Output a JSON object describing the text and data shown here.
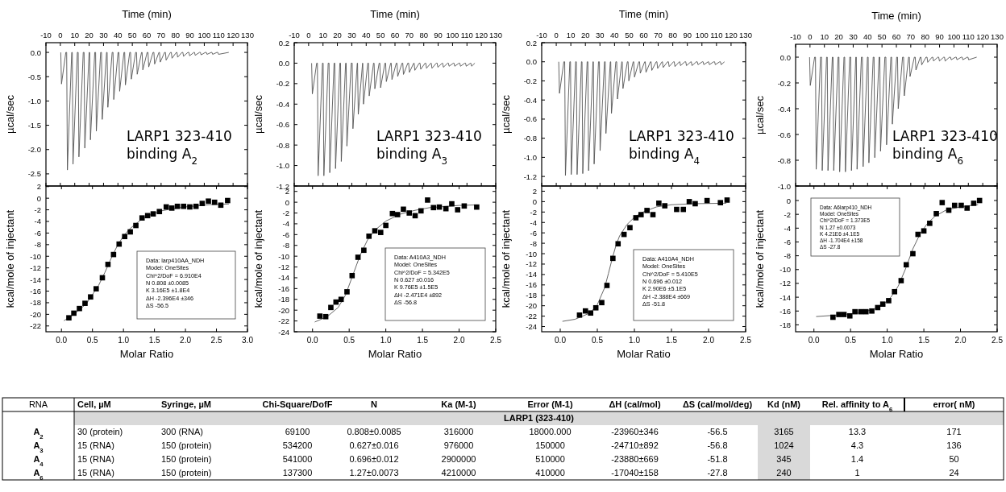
{
  "chart_data": [
    {
      "type": "line",
      "xlabel": "Time (min)",
      "xlim": [
        -10,
        130
      ],
      "xticks": [
        -10,
        0,
        10,
        20,
        30,
        40,
        50,
        60,
        70,
        80,
        90,
        100,
        110,
        120,
        130
      ],
      "ylabel": "µcal/sec",
      "ylim": [
        -2.75,
        0.2
      ],
      "yticks": [
        {
          "value": 0,
          "label": "0.0"
        },
        {
          "value": -0.5,
          "label": "-0.5"
        },
        {
          "value": -1,
          "label": "-1.0"
        },
        {
          "value": -1.5,
          "label": "-1.5"
        },
        {
          "value": -2,
          "label": "-2.0"
        },
        {
          "value": -2.5,
          "label": "-2.5"
        }
      ],
      "annotations": [
        "LARP1 323-410 binding A$_{2}$"
      ],
      "series": [
        {
          "type": "line",
          "color": "#555555",
          "x": [
            0.3,
            0.8,
            3.8,
            4.4,
            4.9,
            7.9,
            8.3,
            8.8,
            11.8,
            12.4,
            12.9,
            15.9,
            16.5,
            17,
            20,
            20.4,
            20.9,
            23.9,
            24.5,
            25,
            28,
            28.6,
            29.1,
            32.1,
            32.5,
            33,
            36,
            36.6,
            37.1,
            40.1,
            40.7,
            41.2,
            44.2,
            44.7,
            45.2,
            48.2,
            48.8,
            49.3,
            52.3,
            52.9,
            53.4,
            56.4,
            56.8,
            57.3,
            60.3,
            60.9,
            61.4,
            64.4,
            65,
            65.5,
            68.5,
            68.9,
            69.4,
            72.4,
            73,
            73.5,
            76.5,
            77.1,
            77.6,
            80.6,
            81,
            81.5,
            84.5,
            85.1,
            85.6,
            88.6,
            89.3,
            89.8,
            92.8,
            93.2,
            93.7,
            96.7,
            97.3,
            97.8,
            100.8,
            101.4,
            101.9,
            104.9,
            105.3,
            105.8,
            108.8,
            109.4,
            109.9,
            117
          ],
          "values": [
            0,
            -0.65,
            0,
            0,
            -2.42,
            0,
            0,
            -2.3,
            0,
            0,
            -2.15,
            0,
            0,
            -1.97,
            0,
            0,
            -1.8,
            0,
            0,
            -1.62,
            0,
            0,
            -1.38,
            0,
            0,
            -1.13,
            0,
            0,
            -0.97,
            0,
            0,
            -0.8,
            0,
            0,
            -0.67,
            0,
            0,
            -0.55,
            0,
            0,
            -0.45,
            0,
            0,
            -0.36,
            0,
            0,
            -0.3,
            0,
            0,
            -0.24,
            0,
            0,
            -0.2,
            0,
            0,
            -0.16,
            0,
            0,
            -0.12,
            0,
            0,
            -0.1,
            0,
            0,
            -0.08,
            0,
            0,
            -0.07,
            0,
            0,
            -0.06,
            0,
            0,
            -0.05,
            0,
            0,
            -0.04,
            0,
            0,
            -0.04,
            0,
            0,
            -0.04,
            0
          ]
        }
      ]
    },
    {
      "type": "scatter",
      "xlabel": "Molar Ratio",
      "xlim": [
        -0.25,
        3
      ],
      "xticks": [
        {
          "value": 0,
          "label": "0.0"
        },
        {
          "value": 0.5,
          "label": "0.5"
        },
        {
          "value": 1,
          "label": "1.0"
        },
        {
          "value": 1.5,
          "label": "1.5"
        },
        {
          "value": 2,
          "label": "2.0"
        },
        {
          "value": 2.5,
          "label": "2.5"
        },
        {
          "value": 3,
          "label": "3.0"
        }
      ],
      "ylabel": "kcal/mole of injectant",
      "ylim": [
        -23,
        2.1
      ],
      "yticks": [
        2,
        0,
        -2,
        -4,
        -6,
        -8,
        -10,
        -12,
        -14,
        -16,
        -18,
        -20,
        -22
      ],
      "annotations": [
        "Data: larp410AA_NDH",
        "Model: OneSites",
        "Chi^2/DoF = 6.910E4",
        "N 0.808 ±0.0085",
        "K 3.16E5 ±1.8E4",
        "ΔH -2.396E4 ±346",
        "ΔS -56.5"
      ],
      "series": [
        {
          "type": "line",
          "color": "#555555",
          "x": [
            0.04,
            0.2,
            0.4,
            0.6,
            0.7,
            0.8,
            0.9,
            1,
            1.1,
            1.2,
            1.3,
            1.4,
            1.5,
            1.6,
            1.8,
            2,
            2.2,
            2.4,
            2.7
          ],
          "values": [
            -21.1,
            -20,
            -18.2,
            -15,
            -12.8,
            -10.4,
            -8.2,
            -6.5,
            -5.3,
            -4.4,
            -3.6,
            -3,
            -2.6,
            -2.2,
            -1.8,
            -1.5,
            -1.3,
            -1.1,
            -1
          ]
        },
        {
          "type": "scatter",
          "color": "#000000",
          "marker": "square",
          "x": [
            0.12,
            0.2,
            0.29,
            0.38,
            0.47,
            0.56,
            0.66,
            0.75,
            0.84,
            0.93,
            1.02,
            1.11,
            1.2,
            1.3,
            1.39,
            1.48,
            1.58,
            1.69,
            1.78,
            1.87,
            1.97,
            2.07,
            2.17,
            2.27,
            2.37,
            2.47,
            2.57,
            2.68
          ],
          "values": [
            -20.6,
            -19.8,
            -19,
            -18.1,
            -17,
            -15.6,
            -13.7,
            -11.4,
            -9.7,
            -7.9,
            -6.6,
            -5.8,
            -4.7,
            -3.4,
            -3,
            -2.7,
            -2.3,
            -1.5,
            -1.7,
            -1.4,
            -1.4,
            -1.5,
            -1.4,
            -0.9,
            -0.5,
            -0.7,
            -1.2,
            -0.4
          ]
        }
      ]
    },
    {
      "type": "line",
      "xlabel": "Time (min)",
      "xlim": [
        -10,
        130
      ],
      "xticks": [
        -10,
        0,
        10,
        20,
        30,
        40,
        50,
        60,
        70,
        80,
        90,
        100,
        110,
        120,
        130
      ],
      "ylabel": "µcal/sec",
      "ylim": [
        -1.2,
        0.2
      ],
      "yticks": [
        0.2,
        {
          "value": 0,
          "label": "0.0"
        },
        -0.2,
        -0.4,
        -0.6,
        -0.8,
        {
          "value": -1,
          "label": "-1.0"
        },
        -1.2
      ],
      "annotations": [
        "LARP1 323-410 binding A$_{3}$"
      ],
      "series": [
        {
          "type": "line",
          "color": "#555555",
          "x": [
            2.1,
            2.6,
            5.6,
            6.1,
            6.6,
            9.6,
            10.1,
            10.6,
            13.6,
            14.2,
            14.7,
            17.7,
            18.2,
            18.7,
            21.7,
            22.2,
            22.7,
            25.7,
            26.1,
            26.6,
            29.6,
            30.3,
            30.8,
            33.8,
            34,
            34.5,
            37.5,
            37.6,
            38.1,
            41.1,
            41.6,
            42.1,
            45.1,
            45.5,
            46,
            49,
            49.5,
            50,
            53,
            53.5,
            54,
            57,
            57.4,
            57.9,
            60.9,
            61.4,
            61.9,
            64.9,
            65.4,
            65.9,
            68.9,
            69.5,
            70,
            73,
            73.3,
            73.8,
            76.8,
            77.4,
            77.9,
            80.9,
            81.4,
            81.9,
            84.9,
            85.2,
            85.7,
            88.7,
            89.3,
            89.8,
            92.8,
            93.1,
            93.6,
            96.6,
            97.1,
            97.6,
            100.6,
            101,
            101.5,
            104.5,
            105,
            105.5,
            108.5,
            109,
            109.5,
            112.5,
            112.7,
            113.2,
            115.5
          ],
          "values": [
            0,
            -0.3,
            0,
            0,
            -1.1,
            0,
            0,
            -1.1,
            0,
            0,
            -1.07,
            0,
            0,
            -1.03,
            0,
            0,
            -0.96,
            0,
            0,
            -0.81,
            0,
            0,
            -0.64,
            0,
            0,
            -0.5,
            0,
            0,
            -0.4,
            0,
            0,
            -0.32,
            0,
            0,
            -0.25,
            0,
            0,
            -0.24,
            0,
            0,
            -0.18,
            0,
            0,
            -0.16,
            0,
            0,
            -0.13,
            0,
            0,
            -0.11,
            0,
            0,
            -0.09,
            0,
            0,
            -0.07,
            0,
            0,
            -0.06,
            0,
            0,
            -0.05,
            0,
            0,
            -0.05,
            0,
            0,
            -0.04,
            0,
            0,
            -0.04,
            0,
            0,
            -0.03,
            0,
            0,
            -0.03,
            0,
            0,
            -0.03,
            0,
            0,
            -0.03,
            0,
            0,
            -0.03,
            0
          ]
        }
      ]
    },
    {
      "type": "scatter",
      "xlabel": "Molar Ratio",
      "xlim": [
        -0.25,
        2.5
      ],
      "xticks": [
        {
          "value": 0,
          "label": "0.0"
        },
        {
          "value": 0.5,
          "label": "0.5"
        },
        {
          "value": 1,
          "label": "1.0"
        },
        {
          "value": 1.5,
          "label": "1.5"
        },
        {
          "value": 2,
          "label": "2.0"
        },
        {
          "value": 2.5,
          "label": "2.5"
        }
      ],
      "ylabel": "kcal/mole of injectant",
      "ylim": [
        -24,
        3
      ],
      "yticks": [
        2,
        0,
        -2,
        -4,
        -6,
        -8,
        -10,
        -12,
        -14,
        -16,
        -18,
        -20,
        -22,
        -24
      ],
      "annotations": [
        "Data: A410A3_NDH",
        "Model: OneSites",
        "Chi^2/DoF = 5.342E5",
        "N 0.627 ±0.016",
        "K 9.76E5 ±1.5E5",
        "ΔH -2.471E4 ±892",
        "ΔS -56.8"
      ],
      "series": [
        {
          "type": "line",
          "color": "#555555",
          "x": [
            0.03,
            0.2,
            0.35,
            0.45,
            0.55,
            0.65,
            0.75,
            0.85,
            1,
            1.2,
            1.4,
            1.6,
            1.8,
            2,
            2.24
          ],
          "values": [
            -22.2,
            -21.2,
            -19.5,
            -17.2,
            -13.5,
            -9.8,
            -7,
            -5.2,
            -3.5,
            -2.2,
            -1.5,
            -1,
            -0.8,
            -0.6,
            -0.5
          ]
        },
        {
          "type": "scatter",
          "color": "#000000",
          "marker": "square",
          "x": [
            0.1,
            0.18,
            0.25,
            0.32,
            0.39,
            0.47,
            0.54,
            0.62,
            0.7,
            0.77,
            0.85,
            0.93,
            1,
            1.09,
            1.16,
            1.24,
            1.32,
            1.4,
            1.48,
            1.57,
            1.65,
            1.73,
            1.82,
            1.9,
            1.98,
            2.07,
            2.24
          ],
          "values": [
            -21.1,
            -21.2,
            -19.5,
            -18.5,
            -18,
            -16.6,
            -13.6,
            -10.2,
            -8.9,
            -6.3,
            -5.3,
            -5.6,
            -4.3,
            -2.1,
            -2.3,
            -1.3,
            -2,
            -2.5,
            -1.6,
            0.4,
            -1,
            -0.9,
            -1.2,
            -0.3,
            -1.4,
            -0.7,
            -0.9
          ]
        }
      ]
    },
    {
      "type": "line",
      "xlabel": "Time (min)",
      "xlim": [
        -10,
        130
      ],
      "xticks": [
        -10,
        0,
        10,
        20,
        30,
        40,
        50,
        60,
        70,
        80,
        90,
        100,
        110,
        120,
        130
      ],
      "ylabel": "µcal/sec",
      "ylim": [
        -1.3,
        0.2
      ],
      "yticks": [
        0.2,
        {
          "value": 0,
          "label": "0.0"
        },
        -0.2,
        -0.4,
        -0.6,
        -0.8,
        {
          "value": -1,
          "label": "-1.0"
        },
        -1.2
      ],
      "annotations": [
        "LARP1 323-410 binding A$_{4}$"
      ],
      "series": [
        {
          "type": "line",
          "color": "#555555",
          "x": [
            1.7,
            2.2,
            5.2,
            5.8,
            6.3,
            9.3,
            9.8,
            10.3,
            13.3,
            13.8,
            14.3,
            17.3,
            17.7,
            18.2,
            21.2,
            21.7,
            22.2,
            25.2,
            25.5,
            26,
            29,
            29.6,
            30.1,
            33.1,
            33.6,
            34.1,
            37.1,
            37.4,
            37.9,
            40.9,
            41.5,
            42,
            45,
            45.3,
            45.8,
            48.8,
            49.3,
            49.8,
            52.8,
            53.2,
            53.7,
            56.7,
            57.2,
            57.7,
            60.7,
            61.1,
            61.6,
            64.6,
            65.1,
            65.6,
            68.6,
            69.1,
            69.6,
            72.6,
            72.9,
            73.4,
            76.4,
            77,
            77.5,
            80.5,
            81,
            81.5,
            84.5,
            84.8,
            85.3,
            88.3,
            88.9,
            89.4,
            92.4,
            92.7,
            93.2,
            96.2,
            96.8,
            97.3,
            100.3,
            100.8,
            101.3,
            104.3,
            104.6,
            105.1,
            108.1,
            108.7,
            109.2,
            112.2,
            112.7,
            113.2,
            115.5
          ],
          "values": [
            0,
            -0.33,
            0,
            0,
            -1.19,
            0,
            0,
            -1.18,
            0,
            0,
            -1.18,
            0,
            0,
            -1.17,
            0,
            0,
            -1.14,
            0,
            0,
            -1.07,
            0,
            0,
            -0.93,
            0,
            0,
            -0.75,
            0,
            0,
            -0.54,
            0,
            0,
            -0.39,
            0,
            0,
            -0.28,
            0,
            0,
            -0.2,
            0,
            0,
            -0.16,
            0,
            0,
            -0.12,
            0,
            0,
            -0.11,
            0,
            0,
            -0.09,
            0,
            0,
            -0.07,
            0,
            0,
            -0.06,
            0,
            0,
            -0.05,
            0,
            0,
            -0.05,
            0,
            0,
            -0.04,
            0,
            0,
            -0.04,
            0,
            0,
            -0.04,
            0,
            0,
            -0.03,
            0,
            0,
            -0.03,
            0,
            0,
            -0.03,
            0,
            0,
            -0.03,
            0,
            0,
            -0.03,
            0
          ]
        }
      ]
    },
    {
      "type": "scatter",
      "xlabel": "Molar Ratio",
      "xlim": [
        -0.25,
        2.5
      ],
      "xticks": [
        {
          "value": 0,
          "label": "0.0"
        },
        {
          "value": 0.5,
          "label": "0.5"
        },
        {
          "value": 1,
          "label": "1.0"
        },
        {
          "value": 1.5,
          "label": "1.5"
        },
        {
          "value": 2,
          "label": "2.0"
        },
        {
          "value": 2.5,
          "label": "2.5"
        }
      ],
      "ylabel": "kcal/mole of injectant",
      "ylim": [
        -25,
        3
      ],
      "yticks": [
        2,
        0,
        -2,
        -4,
        -6,
        -8,
        -10,
        -12,
        -14,
        -16,
        -18,
        -20,
        -22,
        -24
      ],
      "annotations": [
        "Data: A410A4_NDH",
        "Model: OneSites",
        "Chi^2/DoF = 5.410E5",
        "N 0.696 ±0.012",
        "K 2.90E6 ±5.1E5",
        "ΔH -2.388E4 ±669",
        "ΔS -51.8"
      ],
      "series": [
        {
          "type": "line",
          "color": "#555555",
          "x": [
            0.03,
            0.2,
            0.4,
            0.5,
            0.6,
            0.65,
            0.7,
            0.75,
            0.8,
            0.9,
            1,
            1.1,
            1.3,
            1.5,
            1.8,
            2.24
          ],
          "values": [
            -23,
            -22.6,
            -21.4,
            -19.8,
            -16.5,
            -13.8,
            -11,
            -8.5,
            -6.6,
            -4.4,
            -3,
            -2.1,
            -1,
            -0.6,
            -0.4,
            -0.3
          ]
        },
        {
          "type": "scatter",
          "color": "#000000",
          "marker": "square",
          "x": [
            0.26,
            0.34,
            0.41,
            0.48,
            0.56,
            0.63,
            0.71,
            0.78,
            0.86,
            0.94,
            1.02,
            1.09,
            1.17,
            1.25,
            1.33,
            1.41,
            1.57,
            1.66,
            1.74,
            1.82,
            1.98,
            2.16,
            2.25
          ],
          "values": [
            -21.8,
            -21,
            -21.4,
            -20.4,
            -19.4,
            -16.1,
            -10.9,
            -8.1,
            -6.3,
            -5,
            -3.1,
            -2.5,
            -1.7,
            -2.5,
            -0.3,
            -0.8,
            -1.5,
            -1.5,
            0,
            -0.4,
            0.2,
            -0.2,
            0.3
          ]
        }
      ]
    },
    {
      "type": "line",
      "xlabel": "Time (min)",
      "xlim": [
        -10,
        130
      ],
      "xticks": [
        -10,
        0,
        10,
        20,
        30,
        40,
        50,
        60,
        70,
        80,
        90,
        100,
        110,
        120,
        130
      ],
      "ylabel": "µcal/sec",
      "ylim": [
        -1,
        0.1
      ],
      "yticks": [
        {
          "value": 0,
          "label": "0.0"
        },
        -0.2,
        -0.4,
        -0.6,
        -0.8,
        {
          "value": -1,
          "label": "-1.0"
        }
      ],
      "annotations": [
        "LARP1 323-410 binding A$_{6}$"
      ],
      "series": [
        {
          "type": "line",
          "color": "#555555",
          "x": [
            -0.3,
            0.2,
            3.2,
            3.8,
            4.3,
            7.3,
            8,
            8.5,
            11.5,
            12,
            12.5,
            15.5,
            16,
            16.5,
            19.5,
            20.1,
            20.6,
            23.6,
            24.1,
            24.6,
            27.6,
            28.3,
            28.8,
            31.8,
            32.2,
            32.7,
            35.7,
            36.4,
            36.9,
            39.9,
            40.4,
            40.9,
            43.9,
            44.5,
            45,
            48,
            48.5,
            49,
            52,
            52.7,
            53.2,
            56.2,
            56.7,
            57.2,
            60.2,
            60.8,
            61.3,
            64.3,
            65,
            65.5,
            68.5,
            69,
            69.5,
            72.5,
            73.1,
            73.6,
            76.6,
            77.1,
            77.6,
            80.6,
            81.3,
            81.8,
            84.8,
            85.3,
            85.8,
            88.8,
            89.4,
            89.9,
            92.9,
            93.4,
            93.9,
            96.9,
            97.6,
            98.1,
            101.1,
            101.6,
            102.1,
            105.1,
            105.7,
            106.2,
            109.2,
            109.7,
            110.2,
            115.8
          ],
          "values": [
            0,
            -0.22,
            0,
            0,
            -0.87,
            0,
            0,
            -0.88,
            0,
            0,
            -0.88,
            0,
            0,
            -0.88,
            0,
            0,
            -0.89,
            0,
            0,
            -0.89,
            0,
            0,
            -0.88,
            0,
            0,
            -0.87,
            0,
            0,
            -0.85,
            0,
            0,
            -0.82,
            0,
            0,
            -0.78,
            0,
            0,
            -0.73,
            0,
            0,
            -0.68,
            0,
            0,
            -0.52,
            0,
            0,
            -0.4,
            0,
            0,
            -0.3,
            0,
            0,
            -0.15,
            0,
            0,
            -0.1,
            0,
            0,
            -0.06,
            0,
            0,
            -0.04,
            0,
            0,
            -0.03,
            0,
            0,
            -0.03,
            0,
            0,
            -0.03,
            0,
            0,
            -0.02,
            0,
            0,
            -0.02,
            0,
            0,
            -0.02,
            0,
            0,
            -0.02,
            0
          ]
        }
      ]
    },
    {
      "type": "scatter",
      "xlabel": "Molar Ratio",
      "xlim": [
        -0.25,
        2.5
      ],
      "xticks": [
        {
          "value": 0,
          "label": "0.0"
        },
        {
          "value": 0.5,
          "label": "0.5"
        },
        {
          "value": 1,
          "label": "1.0"
        },
        {
          "value": 1.5,
          "label": "1.5"
        },
        {
          "value": 2,
          "label": "2.0"
        },
        {
          "value": 2.5,
          "label": "2.5"
        }
      ],
      "ylabel": "kcal/mole of injectant",
      "ylim": [
        -19,
        2.1
      ],
      "yticks": [
        0,
        -2,
        -4,
        -6,
        -8,
        -10,
        -12,
        -14,
        -16,
        -18
      ],
      "annotations": [
        "Data: A6larp410_NDH",
        "Model: OneSites",
        "Chi^2/DoF = 1.373E5",
        "N 1.27 ±0.0073",
        "K 4.21E6 ±4.1E5",
        "ΔH -1.704E4 ±158",
        "ΔS -27.8"
      ],
      "series": [
        {
          "type": "line",
          "color": "#555555",
          "x": [
            0.03,
            0.3,
            0.6,
            0.8,
            0.95,
            1.05,
            1.15,
            1.25,
            1.35,
            1.45,
            1.55,
            1.65,
            1.8,
            2,
            2.24
          ],
          "values": [
            -16.8,
            -16.6,
            -16.3,
            -15.8,
            -15,
            -14,
            -12.4,
            -9.9,
            -7,
            -4.8,
            -3.3,
            -2.3,
            -1.4,
            -0.9,
            -0.6
          ]
        },
        {
          "type": "scatter",
          "color": "#000000",
          "marker": "square",
          "x": [
            0.26,
            0.34,
            0.41,
            0.49,
            0.56,
            0.64,
            0.71,
            0.79,
            0.87,
            0.94,
            1.02,
            1.1,
            1.19,
            1.26,
            1.35,
            1.42,
            1.5,
            1.58,
            1.67,
            1.75,
            1.84,
            1.92,
            2.01,
            2.09,
            2.18,
            2.26
          ],
          "values": [
            -16.9,
            -16.5,
            -16.5,
            -16.7,
            -16.1,
            -16.1,
            -16.1,
            -16,
            -15.5,
            -15,
            -14.5,
            -13.2,
            -11.6,
            -9.3,
            -7.7,
            -4.9,
            -4.4,
            -3.3,
            -1.9,
            -0.3,
            -1.4,
            -0.7,
            -0.7,
            -1.1,
            -0.4,
            0
          ]
        }
      ]
    },
    {
      "type": "other",
      "ylabel": "RNA",
      "categories": [
        "Cell, µM",
        "Syringe, µM",
        "Chi-Square/DofF",
        "N",
        "Ka (M-1)",
        "Error (M-1)",
        "ΔH (cal/mol)",
        "ΔS (cal/mol/deg)",
        "Kd (nM)",
        "Rel. affinity to A$_{6}$",
        "error( nM)"
      ],
      "subtitle": "LARP1 (323-410)",
      "y_categories": [
        "A$_{2}$",
        "A$_{3}$",
        "A$_{4}$",
        "A$_{6}$"
      ],
      "cell_labels": [
        [
          "30 (protein)",
          "300 (RNA)",
          "69100",
          "0.808±0.0085",
          "316000",
          "18000.000",
          "-23960±346",
          "-56.5",
          "3165",
          "13.3",
          "171"
        ],
        [
          "15 (RNA)",
          "150 (protein)",
          "534200",
          "0.627±0.016",
          "976000",
          "150000",
          "-24710±892",
          "-56.8",
          "1024",
          "4.3",
          "136"
        ],
        [
          "15 (RNA)",
          "150 (protein)",
          "541000",
          "0.696±0.012",
          "2900000",
          "510000",
          "-23880±669",
          "-51.8",
          "345",
          "1.4",
          "50"
        ],
        [
          "15 (RNA)",
          "150 (protein)",
          "137300",
          "1.27±0.0073",
          "4210000",
          "410000",
          "-17040±158",
          "-27.8",
          "240",
          "1",
          "24"
        ]
      ]
    }
  ]
}
